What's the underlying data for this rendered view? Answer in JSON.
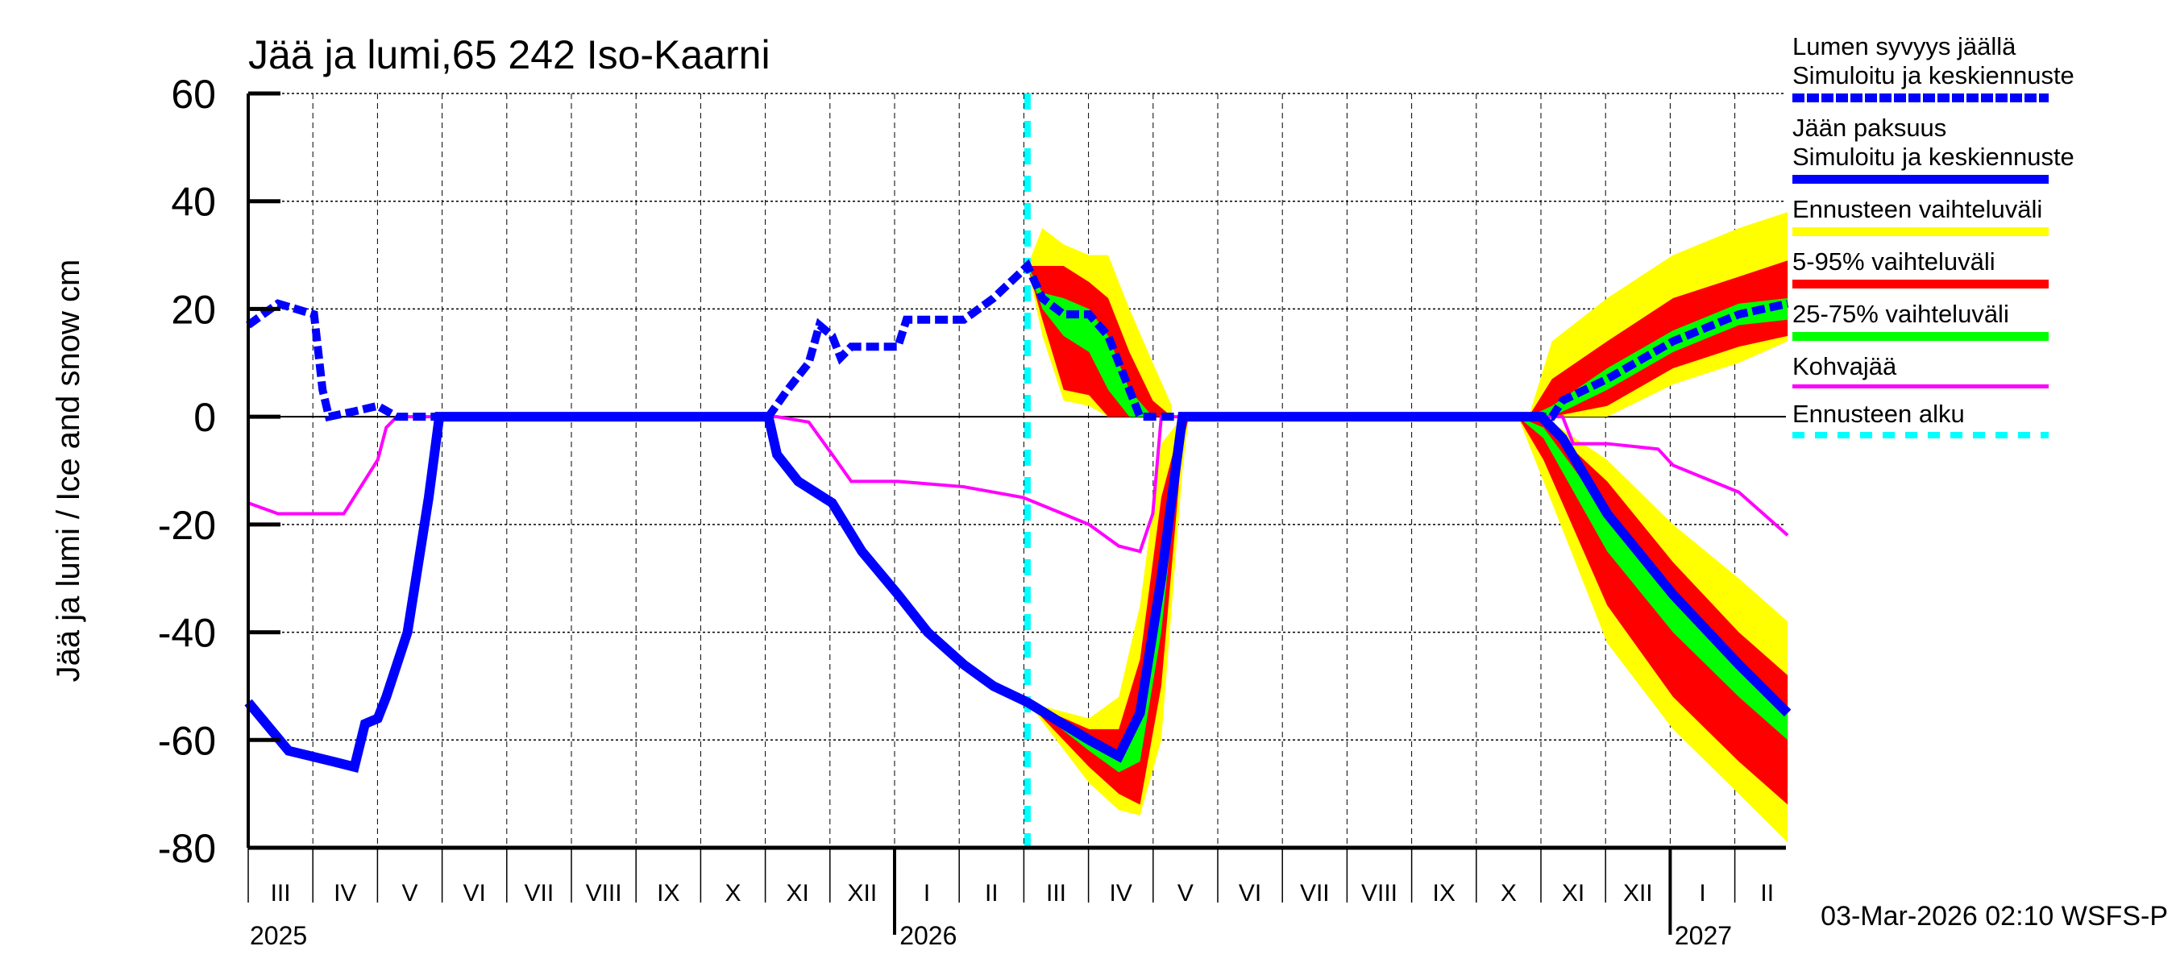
{
  "chart_data": {
    "type": "line",
    "title": "Jää ja lumi,65 242 Iso-Kaarni",
    "ylabel": "Jää ja lumi / Ice and snow    cm",
    "ylim": [
      -80,
      60
    ],
    "yticks": [
      60,
      40,
      20,
      0,
      -20,
      -40,
      -60,
      -80
    ],
    "xlim": [
      "2025-03-01",
      "2027-02-24"
    ],
    "grid": true,
    "legend_placement": "right",
    "month_labels": [
      "III",
      "IV",
      "V",
      "VI",
      "VII",
      "VIII",
      "IX",
      "X",
      "XI",
      "XII",
      "I",
      "II",
      "III",
      "IV",
      "V",
      "VI",
      "VII",
      "VIII",
      "IX",
      "X",
      "XI",
      "XII",
      "I",
      "II"
    ],
    "year_labels": [
      {
        "label": "2025",
        "date": "2025-03-01"
      },
      {
        "label": "2026",
        "date": "2026-01-01"
      },
      {
        "label": "2027",
        "date": "2027-01-01"
      }
    ],
    "forecast_start": "2026-03-03",
    "footer": "03-Mar-2026 02:10 WSFS-P",
    "colors": {
      "snow": "#0000ff",
      "ice": "#0000ff",
      "range": "#ffff00",
      "p5_95": "#ff0000",
      "p25_75": "#00ff00",
      "slush": "#ff00ff",
      "forecast_start": "#00ffff"
    },
    "legend": [
      {
        "label": "Lumen syvyys jäällä\nSimuloitu ja keskiennuste",
        "color": "#0000ff",
        "style": "dashed"
      },
      {
        "label": "Jään paksuus\nSimuloitu ja keskiennuste",
        "color": "#0000ff",
        "style": "solid"
      },
      {
        "label": "Ennusteen vaihteluväli",
        "color": "#ffff00",
        "style": "solid"
      },
      {
        "label": "5-95% vaihteluväli",
        "color": "#ff0000",
        "style": "solid"
      },
      {
        "label": "25-75% vaihteluväli",
        "color": "#00ff00",
        "style": "solid"
      },
      {
        "label": "Kohvajää",
        "color": "#ff00ff",
        "style": "thin"
      },
      {
        "label": "Ennusteen alku",
        "color": "#00ffff",
        "style": "dotted"
      }
    ],
    "series": {
      "snow": [
        [
          "2025-03-01",
          17
        ],
        [
          "2025-03-15",
          21
        ],
        [
          "2025-04-01",
          19
        ],
        [
          "2025-04-05",
          5
        ],
        [
          "2025-04-08",
          0
        ],
        [
          "2025-04-20",
          1
        ],
        [
          "2025-05-01",
          2
        ],
        [
          "2025-05-10",
          0
        ],
        [
          "2025-11-01",
          0
        ],
        [
          "2025-11-10",
          5
        ],
        [
          "2025-11-20",
          10
        ],
        [
          "2025-11-25",
          17
        ],
        [
          "2025-12-01",
          15
        ],
        [
          "2025-12-05",
          11
        ],
        [
          "2025-12-10",
          13
        ],
        [
          "2026-01-01",
          13
        ],
        [
          "2026-01-05",
          18
        ],
        [
          "2026-02-01",
          18
        ],
        [
          "2026-02-15",
          22
        ],
        [
          "2026-03-03",
          28
        ],
        [
          "2026-03-10",
          22
        ],
        [
          "2026-03-20",
          19
        ],
        [
          "2026-04-01",
          19
        ],
        [
          "2026-04-10",
          15
        ],
        [
          "2026-04-20",
          5
        ],
        [
          "2026-04-25",
          0
        ],
        [
          "2026-11-05",
          0
        ],
        [
          "2026-11-10",
          3
        ],
        [
          "2026-12-01",
          7
        ],
        [
          "2027-01-01",
          14
        ],
        [
          "2027-02-01",
          19
        ],
        [
          "2027-02-24",
          21
        ]
      ],
      "ice": [
        [
          "2025-03-01",
          -53
        ],
        [
          "2025-03-20",
          -62
        ],
        [
          "2025-04-10",
          -64
        ],
        [
          "2025-04-20",
          -65
        ],
        [
          "2025-04-25",
          -57
        ],
        [
          "2025-05-01",
          -56
        ],
        [
          "2025-05-05",
          -52
        ],
        [
          "2025-05-15",
          -40
        ],
        [
          "2025-05-25",
          -15
        ],
        [
          "2025-05-30",
          0
        ],
        [
          "2025-11-01",
          0
        ],
        [
          "2025-11-05",
          -7
        ],
        [
          "2025-11-15",
          -12
        ],
        [
          "2025-12-01",
          -16
        ],
        [
          "2025-12-15",
          -25
        ],
        [
          "2026-01-01",
          -33
        ],
        [
          "2026-01-15",
          -40
        ],
        [
          "2026-02-01",
          -46
        ],
        [
          "2026-02-15",
          -50
        ],
        [
          "2026-03-03",
          -53
        ],
        [
          "2026-04-01",
          -60
        ],
        [
          "2026-04-15",
          -63
        ],
        [
          "2026-04-25",
          -55
        ],
        [
          "2026-05-05",
          -30
        ],
        [
          "2026-05-15",
          0
        ],
        [
          "2026-10-31",
          0
        ],
        [
          "2026-11-10",
          -4
        ],
        [
          "2026-12-01",
          -18
        ],
        [
          "2027-01-01",
          -33
        ],
        [
          "2027-02-01",
          -46
        ],
        [
          "2027-02-24",
          -55
        ]
      ],
      "slush": [
        [
          "2025-03-01",
          -16
        ],
        [
          "2025-03-15",
          -18
        ],
        [
          "2025-04-15",
          -18
        ],
        [
          "2025-05-01",
          -8
        ],
        [
          "2025-05-05",
          -2
        ],
        [
          "2025-05-10",
          0
        ],
        [
          "2025-11-05",
          0
        ],
        [
          "2025-11-20",
          -1
        ],
        [
          "2025-12-01",
          -7
        ],
        [
          "2025-12-10",
          -12
        ],
        [
          "2026-01-01",
          -12
        ],
        [
          "2026-02-01",
          -13
        ],
        [
          "2026-03-01",
          -15
        ],
        [
          "2026-04-01",
          -20
        ],
        [
          "2026-04-15",
          -24
        ],
        [
          "2026-04-25",
          -25
        ],
        [
          "2026-05-01",
          -18
        ],
        [
          "2026-05-05",
          0
        ],
        [
          "2026-11-10",
          0
        ],
        [
          "2026-11-15",
          -5
        ],
        [
          "2026-12-01",
          -5
        ],
        [
          "2026-12-25",
          -6
        ],
        [
          "2027-01-01",
          -9
        ],
        [
          "2027-02-01",
          -14
        ],
        [
          "2027-02-24",
          -22
        ]
      ]
    },
    "band_columns": [
      "date",
      "range_min",
      "p5",
      "p25",
      "p75",
      "p95",
      "range_max"
    ],
    "bands": [
      [
        [
          "2026-03-03",
          28,
          28,
          28,
          28,
          28,
          28
        ],
        [
          "2026-03-10",
          15,
          18,
          20,
          23,
          28,
          35
        ],
        [
          "2026-03-20",
          3,
          5,
          15,
          22,
          28,
          32
        ],
        [
          "2026-04-01",
          2,
          4,
          12,
          20,
          25,
          30
        ],
        [
          "2026-04-10",
          0,
          0,
          5,
          15,
          22,
          30
        ],
        [
          "2026-04-20",
          0,
          0,
          0,
          5,
          12,
          20
        ],
        [
          "2026-05-01",
          0,
          0,
          0,
          0,
          3,
          10
        ],
        [
          "2026-05-10",
          0,
          0,
          0,
          0,
          0,
          2
        ]
      ],
      [
        [
          "2026-10-25",
          0,
          0,
          0,
          0,
          0,
          0
        ],
        [
          "2026-11-05",
          0,
          0,
          0,
          2,
          7,
          14
        ],
        [
          "2026-12-01",
          0,
          2,
          5,
          9,
          14,
          22
        ],
        [
          "2027-01-01",
          6,
          9,
          12,
          16,
          22,
          30
        ],
        [
          "2027-02-01",
          10,
          13,
          17,
          21,
          26,
          35
        ],
        [
          "2027-02-24",
          14,
          15,
          18,
          22,
          29,
          38
        ]
      ],
      [
        [
          "2026-03-03",
          -53,
          -53,
          -53,
          -53,
          -53,
          -53
        ],
        [
          "2026-04-01",
          -68,
          -65,
          -62,
          -60,
          -58,
          -56
        ],
        [
          "2026-04-15",
          -73,
          -70,
          -66,
          -62,
          -58,
          -52
        ],
        [
          "2026-04-25",
          -74,
          -72,
          -64,
          -55,
          -45,
          -35
        ],
        [
          "2026-05-05",
          -60,
          -50,
          -40,
          -30,
          -15,
          -5
        ],
        [
          "2026-05-15",
          -10,
          -5,
          -2,
          0,
          0,
          0
        ],
        [
          "2026-05-18",
          0,
          0,
          0,
          0,
          0,
          0
        ]
      ],
      [
        [
          "2026-10-20",
          0,
          0,
          0,
          0,
          0,
          0
        ],
        [
          "2026-11-01",
          -12,
          -8,
          -4,
          -2,
          -1,
          0
        ],
        [
          "2026-12-01",
          -42,
          -35,
          -25,
          -18,
          -12,
          -8
        ],
        [
          "2027-01-01",
          -58,
          -52,
          -40,
          -33,
          -27,
          -20
        ],
        [
          "2027-02-01",
          -70,
          -64,
          -52,
          -46,
          -40,
          -30
        ],
        [
          "2027-02-24",
          -79,
          -72,
          -60,
          -55,
          -48,
          -38
        ]
      ]
    ]
  }
}
